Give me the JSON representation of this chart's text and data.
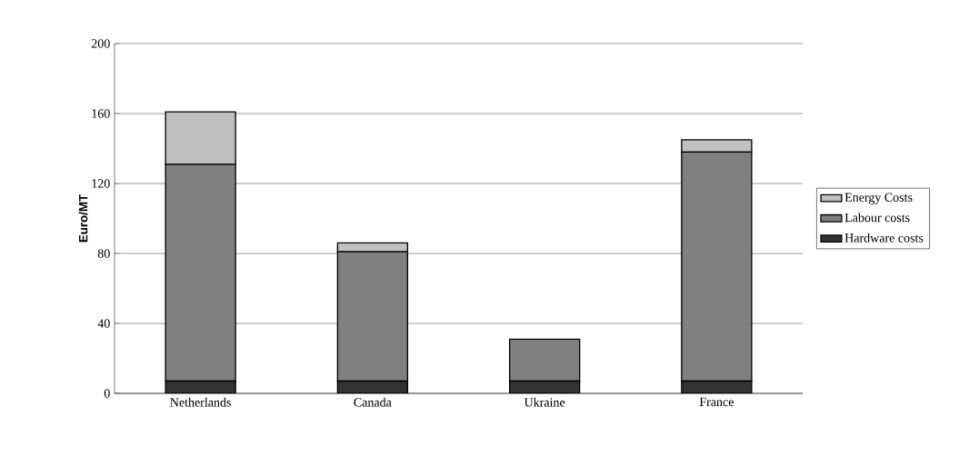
{
  "chart_data": {
    "type": "bar",
    "stacked": true,
    "ylabel": "Euro/MT",
    "categories": [
      "Netherlands",
      "Canada",
      "Ukraine",
      "France"
    ],
    "series": [
      {
        "name": "Hardware costs",
        "color": "#333333",
        "values": [
          7,
          7,
          7,
          7
        ]
      },
      {
        "name": "Labour costs",
        "color": "#808080",
        "values": [
          124,
          74,
          24,
          131
        ]
      },
      {
        "name": "Energy Costs",
        "color": "#c0c0c0",
        "values": [
          30,
          5,
          0,
          7
        ]
      }
    ],
    "ylim": [
      0,
      200
    ],
    "yticks": [
      0,
      40,
      80,
      120,
      160,
      200
    ],
    "grid": "y",
    "legend": "right"
  }
}
